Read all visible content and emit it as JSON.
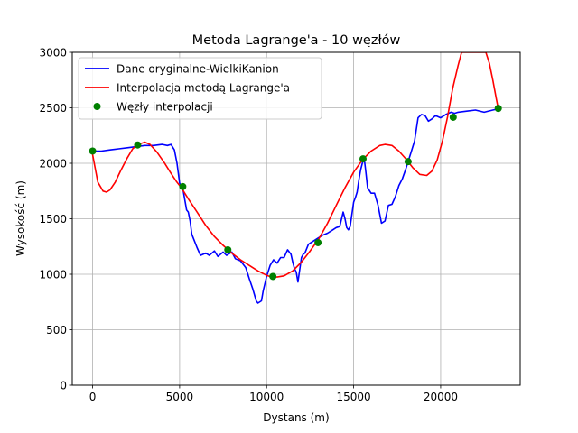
{
  "chart_data": {
    "type": "line",
    "title": "Metoda Lagrange'a - 10 węzłów",
    "xlabel": "Dystans (m)",
    "ylabel": "Wysokość (m)",
    "xlim": [
      -1170,
      24570
    ],
    "ylim": [
      0,
      3000
    ],
    "xticks": [
      0,
      5000,
      10000,
      15000,
      20000
    ],
    "yticks": [
      0,
      500,
      1000,
      1500,
      2000,
      2500,
      3000
    ],
    "grid": true,
    "legend_position": "top-left",
    "series": [
      {
        "name": "Dane oryginalne-WielkiKanion",
        "color": "#0000ff",
        "style": "line",
        "x": [
          0,
          500,
          1000,
          1500,
          2000,
          2500,
          3000,
          3500,
          4000,
          4300,
          4500,
          4700,
          4850,
          5000,
          5100,
          5200,
          5400,
          5500,
          5600,
          5700,
          5800,
          6000,
          6200,
          6500,
          6700,
          7000,
          7200,
          7500,
          7700,
          8000,
          8200,
          8500,
          8800,
          9000,
          9200,
          9400,
          9500,
          9700,
          9800,
          10000,
          10200,
          10400,
          10600,
          10800,
          11000,
          11200,
          11400,
          11500,
          11600,
          11700,
          11800,
          12000,
          12100,
          12200,
          12400,
          12600,
          12900,
          13200,
          13500,
          13800,
          14000,
          14200,
          14400,
          14500,
          14600,
          14700,
          14800,
          15000,
          15100,
          15200,
          15300,
          15400,
          15500,
          15600,
          15700,
          15800,
          16000,
          16200,
          16400,
          16600,
          16800,
          17000,
          17200,
          17400,
          17600,
          17800,
          18000,
          18100,
          18300,
          18500,
          18700,
          18900,
          19100,
          19300,
          19500,
          19700,
          20000,
          20300,
          20600,
          20800,
          21000,
          21500,
          22000,
          22500,
          23000,
          23300
        ],
        "y": [
          2110,
          2110,
          2120,
          2130,
          2140,
          2150,
          2160,
          2160,
          2170,
          2160,
          2170,
          2120,
          2000,
          1820,
          1790,
          1760,
          1580,
          1560,
          1480,
          1360,
          1320,
          1240,
          1170,
          1190,
          1170,
          1210,
          1160,
          1200,
          1170,
          1200,
          1140,
          1120,
          1060,
          960,
          870,
          760,
          740,
          760,
          850,
          980,
          1080,
          1130,
          1100,
          1150,
          1150,
          1220,
          1180,
          1110,
          1050,
          1020,
          930,
          1150,
          1180,
          1190,
          1270,
          1290,
          1320,
          1350,
          1370,
          1400,
          1420,
          1430,
          1560,
          1500,
          1420,
          1400,
          1430,
          1650,
          1690,
          1740,
          1850,
          1940,
          2000,
          2050,
          1920,
          1780,
          1730,
          1730,
          1620,
          1460,
          1480,
          1620,
          1630,
          1700,
          1800,
          1860,
          1950,
          2000,
          2100,
          2200,
          2410,
          2440,
          2430,
          2380,
          2400,
          2430,
          2410,
          2440,
          2460,
          2450,
          2460,
          2470,
          2480,
          2460,
          2480,
          2490
        ]
      },
      {
        "name": "Interpolacja metodą Lagrange'a",
        "color": "#ff0000",
        "style": "line",
        "x": [
          0,
          300,
          600,
          800,
          1000,
          1300,
          1600,
          2000,
          2300,
          2600,
          3000,
          3300,
          3700,
          4100,
          4500,
          4800,
          5100,
          5500,
          6000,
          6500,
          7000,
          7500,
          8000,
          8500,
          9000,
          9500,
          10000,
          10300,
          10600,
          11000,
          11500,
          12000,
          12500,
          13000,
          13500,
          14000,
          14500,
          15000,
          15500,
          16000,
          16500,
          16800,
          17200,
          17600,
          18000,
          18400,
          18800,
          19200,
          19500,
          19800,
          20100,
          20400,
          20700,
          21000,
          21200,
          21350,
          22600,
          22800,
          23000,
          23200,
          23300
        ],
        "y": [
          2080,
          1830,
          1750,
          1740,
          1760,
          1830,
          1930,
          2050,
          2130,
          2170,
          2190,
          2170,
          2100,
          2010,
          1910,
          1840,
          1780,
          1680,
          1560,
          1440,
          1340,
          1260,
          1190,
          1130,
          1080,
          1030,
          990,
          975,
          975,
          985,
          1030,
          1110,
          1210,
          1320,
          1460,
          1620,
          1780,
          1920,
          2030,
          2110,
          2160,
          2170,
          2160,
          2110,
          2040,
          1960,
          1900,
          1890,
          1930,
          2030,
          2200,
          2420,
          2680,
          2880,
          3000,
          3000,
          3000,
          2900,
          2750,
          2580,
          2500
        ]
      },
      {
        "name": "Węzły interpolacji",
        "color": "#008000",
        "style": "marker",
        "x": [
          0,
          2590,
          5180,
          7770,
          10360,
          12950,
          15540,
          18130,
          20720,
          23310
        ],
        "y": [
          2110,
          2165,
          1790,
          1220,
          980,
          1285,
          2040,
          2015,
          2415,
          2495
        ]
      }
    ]
  }
}
